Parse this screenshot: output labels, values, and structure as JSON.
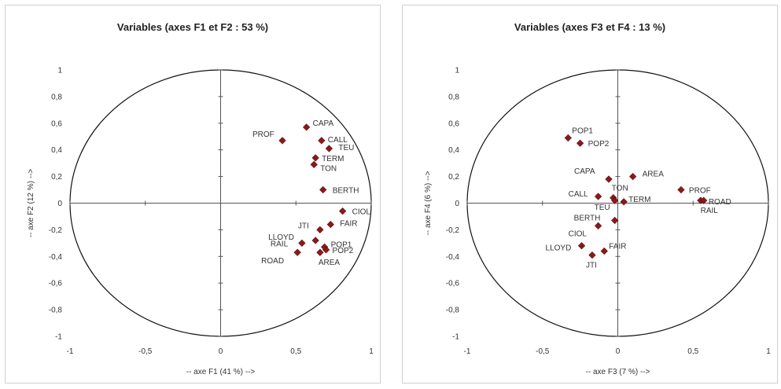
{
  "chart_data": [
    {
      "type": "scatter",
      "title": "Variables (axes F1 et F2 : 53 %)",
      "xlabel": "-- axe F1 (41 %) -->",
      "ylabel": "-- axe F2 (12 %) -->",
      "xlim": [
        -1,
        1
      ],
      "ylim": [
        -1,
        1
      ],
      "xticks": [
        "-1",
        "-0,5",
        "0",
        "0,5",
        "1"
      ],
      "yticks": [
        "1",
        "0,8",
        "0,6",
        "0,4",
        "0,2",
        "0",
        "-0,2",
        "-0,4",
        "-0,6",
        "-0,8",
        "-1"
      ],
      "circle": true,
      "marker_color": "#8b1a1a",
      "points": [
        {
          "label": "PROF",
          "x": 0.41,
          "y": 0.47
        },
        {
          "label": "CAPA",
          "x": 0.57,
          "y": 0.57
        },
        {
          "label": "CALL",
          "x": 0.67,
          "y": 0.47
        },
        {
          "label": "TEU",
          "x": 0.72,
          "y": 0.41
        },
        {
          "label": "TERM",
          "x": 0.63,
          "y": 0.34
        },
        {
          "label": "TON",
          "x": 0.62,
          "y": 0.29
        },
        {
          "label": "BERTH",
          "x": 0.68,
          "y": 0.1
        },
        {
          "label": "CIOL",
          "x": 0.81,
          "y": -0.06
        },
        {
          "label": "FAIR",
          "x": 0.73,
          "y": -0.16
        },
        {
          "label": "JTI",
          "x": 0.66,
          "y": -0.2
        },
        {
          "label": "LLOYD",
          "x": 0.63,
          "y": -0.28
        },
        {
          "label": "POP1",
          "x": 0.69,
          "y": -0.33
        },
        {
          "label": "RAIL",
          "x": 0.54,
          "y": -0.3
        },
        {
          "label": "POP2",
          "x": 0.7,
          "y": -0.35
        },
        {
          "label": "AREA",
          "x": 0.66,
          "y": -0.37
        },
        {
          "label": "ROAD",
          "x": 0.51,
          "y": -0.37
        }
      ]
    },
    {
      "type": "scatter",
      "title": "Variables (axes F3 et F4 : 13 %)",
      "xlabel": "-- axe F3 (7 %) -->",
      "ylabel": "-- axe F4 (6 %) -->",
      "xlim": [
        -1,
        1
      ],
      "ylim": [
        -1,
        1
      ],
      "xticks": [
        "-1",
        "-0,5",
        "0",
        "0,5",
        "1"
      ],
      "yticks": [
        "1",
        "0,8",
        "0,6",
        "0,4",
        "0,2",
        "0",
        "-0,2",
        "-0,4",
        "-0,6",
        "-0,8",
        "-1"
      ],
      "circle": true,
      "marker_color": "#8b1a1a",
      "points": [
        {
          "label": "POP1",
          "x": -0.33,
          "y": 0.49
        },
        {
          "label": "POP2",
          "x": -0.25,
          "y": 0.45
        },
        {
          "label": "CAPA",
          "x": -0.06,
          "y": 0.18
        },
        {
          "label": "AREA",
          "x": 0.1,
          "y": 0.2
        },
        {
          "label": "PROF",
          "x": 0.42,
          "y": 0.1
        },
        {
          "label": "CALL",
          "x": -0.13,
          "y": 0.05
        },
        {
          "label": "TON",
          "x": -0.03,
          "y": 0.04
        },
        {
          "label": "TERM",
          "x": 0.04,
          "y": 0.01
        },
        {
          "label": "TEU",
          "x": -0.02,
          "y": 0.02
        },
        {
          "label": "ROAD",
          "x": 0.55,
          "y": 0.02
        },
        {
          "label": "RAIL",
          "x": 0.57,
          "y": 0.02
        },
        {
          "label": "BERTH",
          "x": -0.02,
          "y": -0.13
        },
        {
          "label": "CIOL",
          "x": -0.13,
          "y": -0.17
        },
        {
          "label": "FAIR",
          "x": -0.09,
          "y": -0.36
        },
        {
          "label": "LLOYD",
          "x": -0.24,
          "y": -0.32
        },
        {
          "label": "JTI",
          "x": -0.17,
          "y": -0.39
        }
      ]
    }
  ]
}
